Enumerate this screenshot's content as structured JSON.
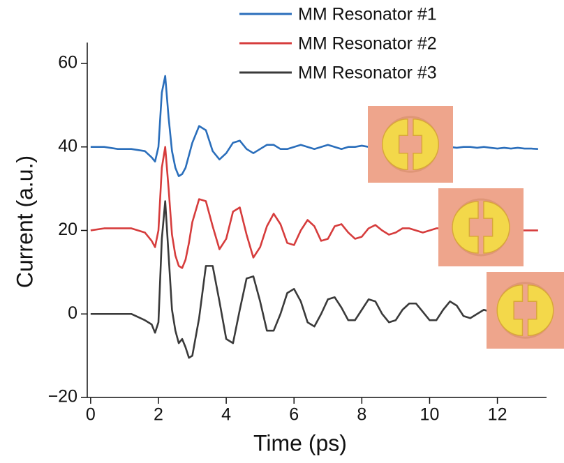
{
  "chart_data": {
    "type": "line",
    "x_label": "Time (ps)",
    "y_label": "Current (a.u.)",
    "x": [
      0,
      0.4,
      0.8,
      1.2,
      1.6,
      1.8,
      1.9,
      2.0,
      2.1,
      2.2,
      2.3,
      2.4,
      2.5,
      2.6,
      2.7,
      2.8,
      2.9,
      3.0,
      3.2,
      3.4,
      3.6,
      3.8,
      4.0,
      4.2,
      4.4,
      4.6,
      4.8,
      5.0,
      5.2,
      5.4,
      5.6,
      5.8,
      6.0,
      6.2,
      6.4,
      6.6,
      6.8,
      7.0,
      7.2,
      7.4,
      7.6,
      7.8,
      8.0,
      8.2,
      8.4,
      8.6,
      8.8,
      9.0,
      9.2,
      9.4,
      9.6,
      9.8,
      10.0,
      10.2,
      10.4,
      10.6,
      10.8,
      11.0,
      11.2,
      11.4,
      11.6,
      11.8,
      12.0,
      12.2,
      12.4,
      12.6,
      12.8,
      13.0,
      13.2
    ],
    "series": [
      {
        "name": "MM Resonator #1",
        "color": "#2a6ebb",
        "values": [
          40,
          40,
          39.5,
          39.5,
          39,
          37.5,
          36.5,
          40,
          53,
          57,
          47,
          39,
          35,
          33,
          33.5,
          35,
          38,
          41,
          45,
          44,
          39,
          37,
          38.5,
          41,
          41.5,
          39.5,
          38.5,
          39.5,
          40.5,
          40.5,
          39.5,
          39.5,
          40,
          40.5,
          40,
          39.5,
          40,
          40.5,
          40,
          39.5,
          40,
          40,
          40.3,
          40,
          40.3,
          40,
          40.3,
          40,
          40,
          40.3,
          40.2,
          40,
          40,
          40,
          40.3,
          40,
          39.8,
          40,
          40,
          39.8,
          40,
          39.8,
          39.6,
          39.8,
          39.6,
          39.8,
          39.6,
          39.6,
          39.5
        ]
      },
      {
        "name": "MM Resonator #2",
        "color": "#d63c3c",
        "values": [
          20,
          20.5,
          20.5,
          20.5,
          19.5,
          17.5,
          16,
          20,
          35,
          40,
          30,
          19,
          14,
          11.5,
          11,
          13,
          17,
          22,
          27.5,
          27,
          21,
          15.5,
          18,
          24.5,
          25.5,
          19,
          13.5,
          16,
          21,
          24,
          21.5,
          17,
          16.5,
          20,
          22.5,
          21,
          17.5,
          18,
          21,
          21.5,
          19.5,
          18,
          18.5,
          20.5,
          21.3,
          20,
          19,
          19.5,
          20.5,
          20.5,
          20,
          19.5,
          20,
          20.5,
          20.5,
          20,
          20,
          20,
          20.5,
          20,
          20,
          20.5,
          20,
          20,
          20.5,
          20,
          20,
          20,
          20
        ]
      },
      {
        "name": "MM Resonator #3",
        "color": "#3a3a3a",
        "values": [
          0,
          0,
          0,
          0,
          -1.5,
          -2.5,
          -4.5,
          -2,
          18,
          27,
          14,
          1,
          -4,
          -7,
          -6,
          -8,
          -10.5,
          -10,
          -1,
          11.5,
          11.5,
          3,
          -6,
          -7,
          1,
          8.5,
          9,
          3,
          -4,
          -4,
          0,
          5,
          6,
          3,
          -2,
          -3,
          0,
          3.5,
          4,
          1.5,
          -1.5,
          -1.5,
          1,
          3.5,
          3,
          0,
          -2,
          -1.5,
          1,
          2.5,
          2.5,
          0.5,
          -1.5,
          -1.5,
          1,
          3,
          2,
          -0.5,
          -1,
          0,
          1,
          0.5,
          0,
          0,
          0.5,
          0,
          0,
          0,
          0
        ]
      }
    ],
    "xlim": [
      -0.1,
      13.45
    ],
    "ylim": [
      -20,
      65
    ],
    "xticks": [
      0,
      2,
      4,
      6,
      8,
      10,
      12
    ],
    "yticks": [
      {
        "value": -20,
        "label": "−20"
      },
      0,
      20,
      40,
      60
    ],
    "legend": "top-right",
    "grid": false
  }
}
